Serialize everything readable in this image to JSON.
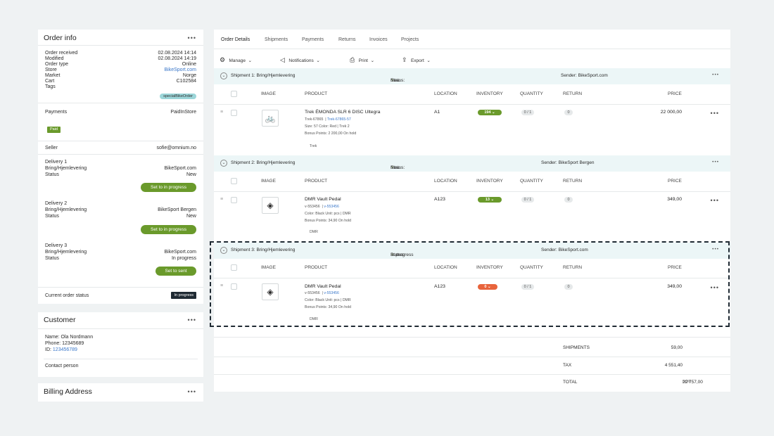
{
  "order_info": {
    "title": "Order info",
    "rows": [
      {
        "k": "Order received",
        "v": "02.08.2024 14:14"
      },
      {
        "k": "Modified",
        "v": "02.08.2024 14:19"
      },
      {
        "k": "Order type",
        "v": "Online"
      },
      {
        "k": "Store",
        "v": "BikeSport.com"
      },
      {
        "k": "Market",
        "v": "Norge"
      },
      {
        "k": "Cart",
        "v": "C102584"
      },
      {
        "k": "Tags",
        "v": "specialBikeOrder"
      }
    ],
    "payments_label": "Payments",
    "payments_value": "PaidInStore",
    "paid_badge": "Paid",
    "seller_label": "Seller",
    "seller_value": "sofie@omnium.no",
    "deliveries": [
      {
        "title": "Delivery 1",
        "method": "Bring/Hjemlevering",
        "store": "BikeSport.com",
        "status_label": "Status",
        "status": "New",
        "button": "Set to in progress"
      },
      {
        "title": "Delivery 2",
        "method": "Bring/Hjemlevering",
        "store": "BikeSport Bergen",
        "status_label": "Status",
        "status": "New",
        "button": "Set to in progress"
      },
      {
        "title": "Delivery 3",
        "method": "Bring/Hjemlevering",
        "store": "BikeSport.com",
        "status_label": "Status",
        "status": "In progress",
        "button": "Set to sent"
      }
    ],
    "current_status_label": "Current order status",
    "current_status": "In progress"
  },
  "customer": {
    "title": "Customer",
    "name": "Name: Ola Nordmann",
    "phone": "Phone: 12345689",
    "id_label": "ID:",
    "id": "123456789",
    "contact": "Contact person"
  },
  "billing": {
    "title": "Billing Address"
  },
  "tabs": [
    "Order Details",
    "Shipments",
    "Payments",
    "Returns",
    "Invoices",
    "Projects"
  ],
  "toolbar": {
    "manage": "Manage",
    "notifications": "Notifications",
    "print": "Print",
    "export": "Export"
  },
  "columns": {
    "image": "IMAGE",
    "product": "PRODUCT",
    "location": "LOCATION",
    "inventory": "INVENTORY",
    "quantity": "QUANTITY",
    "return": "RETURN",
    "price": "PRICE"
  },
  "shipments": [
    {
      "title": "Shipment 1: Bring/Hjemlevering",
      "status_label": "Status:",
      "status": "New",
      "sender": "Sender: BikeSport.com",
      "item": {
        "name": "Trek ÉMONDA SLR 6 DISC Ultegra",
        "sku": "Trek-67865",
        "variant": "Trek-67865-57",
        "attrs": "Size: 57   Color: Red   |   Trek 2",
        "bonus": "Bonus Points: 2 200,00  On hold",
        "brand": "Trek",
        "location": "A1",
        "inventory": "194",
        "quantity": "0 / 1",
        "return": "0",
        "price": "22 000,00",
        "icon": "🚲",
        "inv_color": "#6a9a2b"
      }
    },
    {
      "title": "Shipment 2: Bring/Hjemlevering",
      "status_label": "Status:",
      "status": "New",
      "sender": "Sender: BikeSport Bergen",
      "item": {
        "name": "DMR Vault Pedal",
        "sku": "v-553456",
        "variant": "v-553456",
        "attrs": "Color: Black   Unit: pcs   |   DMR",
        "bonus": "Bonus Points: 34,90  On hold",
        "brand": "DMR",
        "location": "A123",
        "inventory": "13",
        "quantity": "0 / 1",
        "return": "0",
        "price": "349,00",
        "icon": "◈",
        "inv_color": "#6a9a2b"
      }
    },
    {
      "title": "Shipment 3: Bring/Hjemlevering",
      "status_label": "Status:",
      "status": "In progress",
      "sender": "Sender: BikeSport.com",
      "item": {
        "name": "DMR Vault Pedal",
        "sku": "v-553456",
        "variant": "v-553456",
        "attrs": "Color: Black   Unit: pcs   |   DMR",
        "bonus": "Bonus Points: 34,90  On hold",
        "brand": "DMR",
        "location": "A123",
        "inventory": "0",
        "quantity": "0 / 1",
        "return": "0",
        "price": "349,00",
        "icon": "◈",
        "inv_color": "#e8643c"
      }
    }
  ],
  "summary": {
    "shipments_label": "SHIPMENTS",
    "shipments": "59,00",
    "tax_label": "TAX",
    "tax": "4 551,40",
    "total_label": "TOTAL",
    "currency": "NOK",
    "total": "22 757,00"
  }
}
